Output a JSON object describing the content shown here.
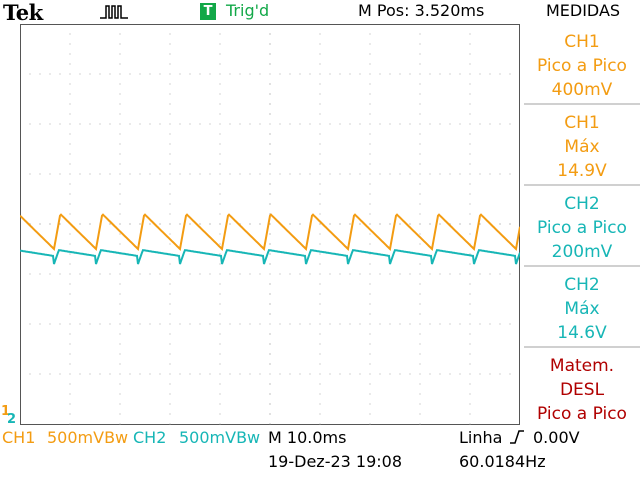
{
  "header": {
    "logo": "Tek",
    "acquisition_icon": "pulse-run-icon",
    "trigger_badge": "T",
    "trigger_status": "Trig'd",
    "horizontal_position": "M Pos: 3.520ms",
    "menu_title": "MEDIDAS"
  },
  "measurements": [
    {
      "channel": "CH1",
      "type": "Pico a Pico",
      "value": "400mV",
      "color": "#f39c12"
    },
    {
      "channel": "CH1",
      "type": "Máx",
      "value": "14.9V",
      "color": "#f39c12"
    },
    {
      "channel": "CH2",
      "type": "Pico a Pico",
      "value": "200mV",
      "color": "#17b6b6"
    },
    {
      "channel": "CH2",
      "type": "Máx",
      "value": "14.6V",
      "color": "#17b6b6"
    },
    {
      "channel": "Matem.",
      "type": "DESL",
      "value": "Pico a Pico",
      "color": "#b00000"
    }
  ],
  "footer": {
    "ch1_label": "CH1",
    "ch1_scale": "500mVBw",
    "ch2_label": "CH2",
    "ch2_scale": "500mVBw",
    "timebase": "M 10.0ms",
    "timestamp": "19-Dez-23 19:08",
    "trigger_source": "Linha",
    "trigger_level": "0.00V",
    "frequency": "60.0184Hz"
  },
  "markers": {
    "ch1_ground": "1",
    "ch2_ground": "2"
  },
  "colors": {
    "ch1": "#f39c12",
    "ch2": "#17b6b6",
    "math": "#b00000",
    "trigger": "#12a848"
  }
}
